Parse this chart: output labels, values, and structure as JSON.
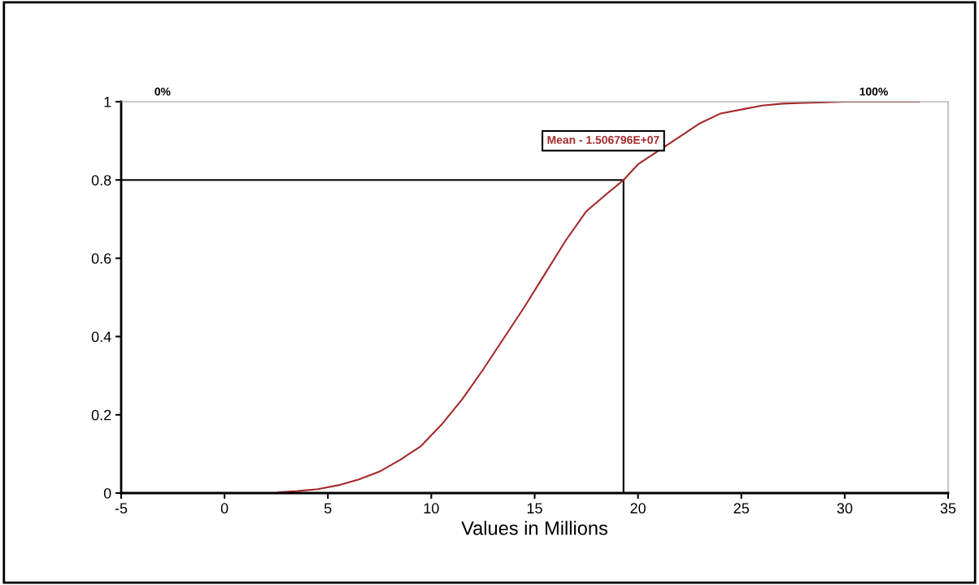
{
  "chart_data": {
    "type": "line",
    "xlabel": "Values in Millions",
    "x": [
      2.6,
      3.5,
      4.5,
      5.5,
      6.5,
      7.5,
      8.5,
      9.5,
      10.5,
      11.5,
      12.5,
      13.5,
      14.5,
      15.5,
      16.5,
      17.5,
      18.5,
      19.3,
      20,
      21,
      22,
      23,
      24,
      25,
      26,
      27,
      28,
      30,
      33.6
    ],
    "series": [
      {
        "color": "#a52a2a",
        "values": [
          0.002,
          0.005,
          0.01,
          0.02,
          0.035,
          0.055,
          0.085,
          0.12,
          0.175,
          0.24,
          0.315,
          0.395,
          0.475,
          0.56,
          0.645,
          0.72,
          0.765,
          0.8,
          0.84,
          0.875,
          0.91,
          0.945,
          0.97,
          0.98,
          0.99,
          0.995,
          0.997,
          1.0,
          1.0
        ]
      }
    ],
    "xlim": [
      -5,
      35
    ],
    "xticks": [
      -5,
      0,
      5,
      10,
      15,
      20,
      25,
      30,
      35
    ],
    "ylim": [
      0,
      1
    ],
    "yticks": [
      0,
      0.2,
      0.4,
      0.6,
      0.8,
      1
    ],
    "ref_lines": [
      {
        "axis": "x",
        "value": 19.3,
        "color": "#000000"
      },
      {
        "axis": "y",
        "value": 0.8,
        "color": "#000000"
      }
    ],
    "annotations": [
      "0%",
      "100%",
      "Mean - 1.506796E+07"
    ],
    "grid": false,
    "legend": false,
    "marker": "none",
    "line_style": "solid"
  }
}
